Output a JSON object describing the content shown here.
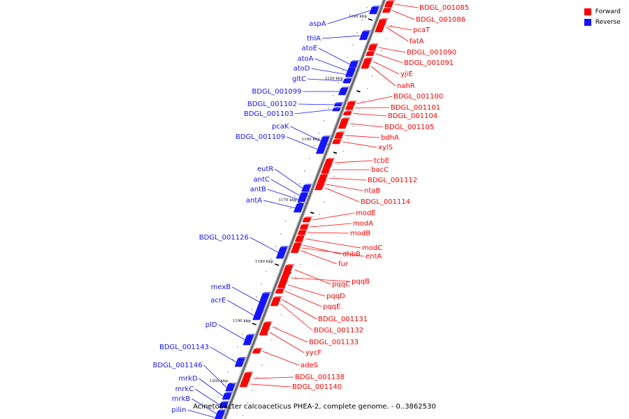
{
  "legend": {
    "forward": {
      "label": "Forward",
      "color": "#ff0000"
    },
    "reverse": {
      "label": "Reverse",
      "color": "#1414ff"
    }
  },
  "caption": "Acinetobacter calcoaceticus PHEA-2, complete genome. - 0..3862530",
  "scale_ticks": [
    "1140 kbp",
    "1150 kbp",
    "1160 kbp",
    "1170 kbp",
    "1180 kbp",
    "1190 kbp",
    "1200 kbp"
  ],
  "reverse_genes": [
    "aspA",
    "thlA",
    "atoE",
    "atoA",
    "atoD",
    "gltC",
    "BDGL_001099",
    "BDGL_001102",
    "BDGL_001103",
    "pcaK",
    "BDGL_001109",
    "eutR",
    "antC",
    "antB",
    "antA",
    "BDGL_001126",
    "mexB",
    "acrE",
    "plD",
    "BDGL_001143",
    "BDGL_001146",
    "mrkD",
    "mrkC",
    "mrkB",
    "pilin"
  ],
  "forward_genes": [
    "BDGL_001085",
    "BDGL_001086",
    "pcaT",
    "fatA",
    "BDGL_001090",
    "BDGL_001091",
    "yjiE",
    "nahR",
    "BDGL_001100",
    "BDGL_001101",
    "BDGL_001104",
    "BDGL_001105",
    "bdhA",
    "xylS",
    "tcbE",
    "bacC",
    "BDGL_001112",
    "ntaB",
    "BDGL_001114",
    "modE",
    "modA",
    "modB",
    "modC",
    "dhbB",
    "entA",
    "fur",
    "pqqC",
    "pqqB",
    "pqqD",
    "pqqE",
    "BDGL_001131",
    "BDGL_001132",
    "BDGL_001133",
    "yycF",
    "adeS",
    "BDGL_001138",
    "BDGL_001140"
  ]
}
